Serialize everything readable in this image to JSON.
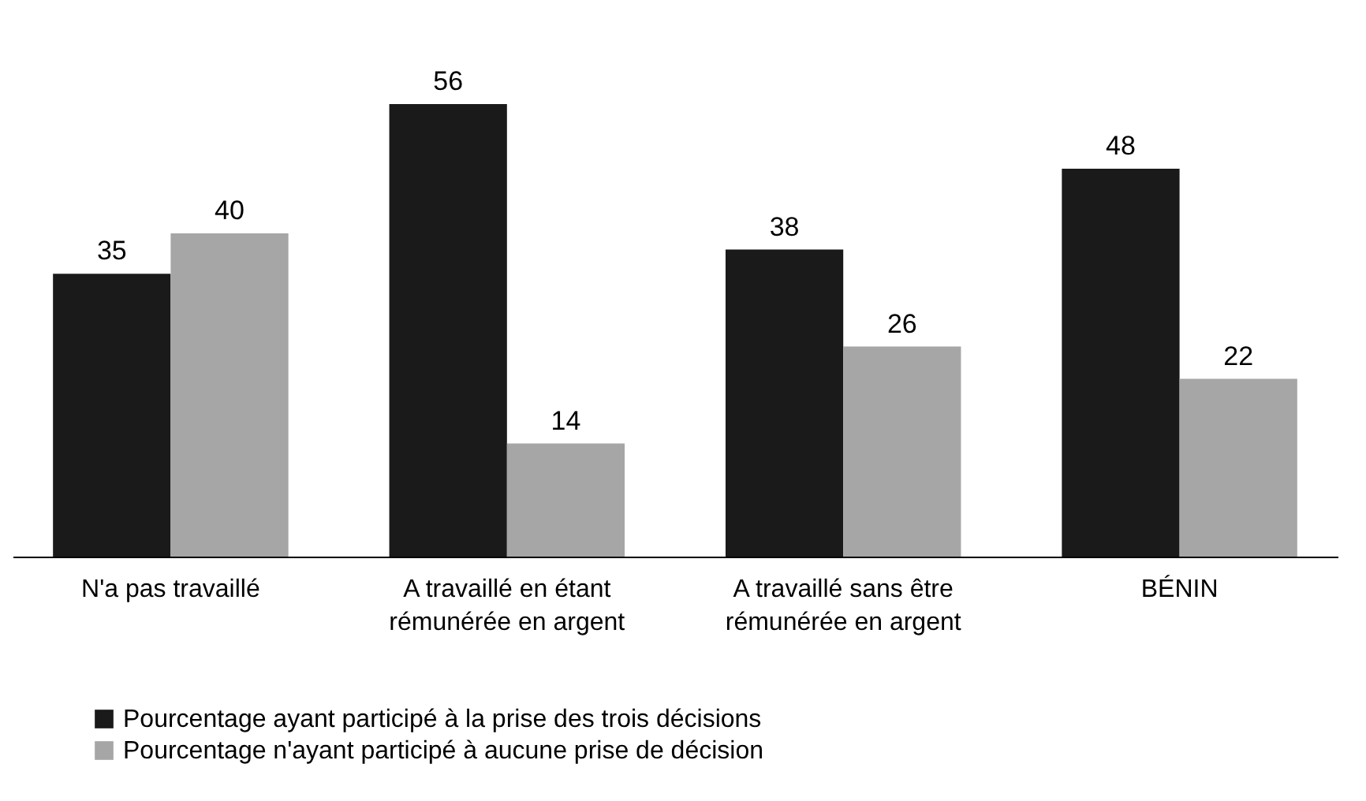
{
  "chart_data": {
    "type": "bar",
    "categories": [
      "N'a pas travaillé",
      "A travaillé en étant rémunérée en argent",
      "A travaillé sans être rémunérée en argent",
      "BÉNIN"
    ],
    "series": [
      {
        "name": "Pourcentage ayant participé à la prise des trois décisions",
        "color": "#1a1a1a",
        "values": [
          35,
          56,
          38,
          48
        ]
      },
      {
        "name": "Pourcentage n'ayant participé à aucune prise de décision",
        "color": "#a6a6a6",
        "values": [
          40,
          14,
          26,
          22
        ]
      }
    ],
    "data_labels": true,
    "legend": "bottom left"
  }
}
